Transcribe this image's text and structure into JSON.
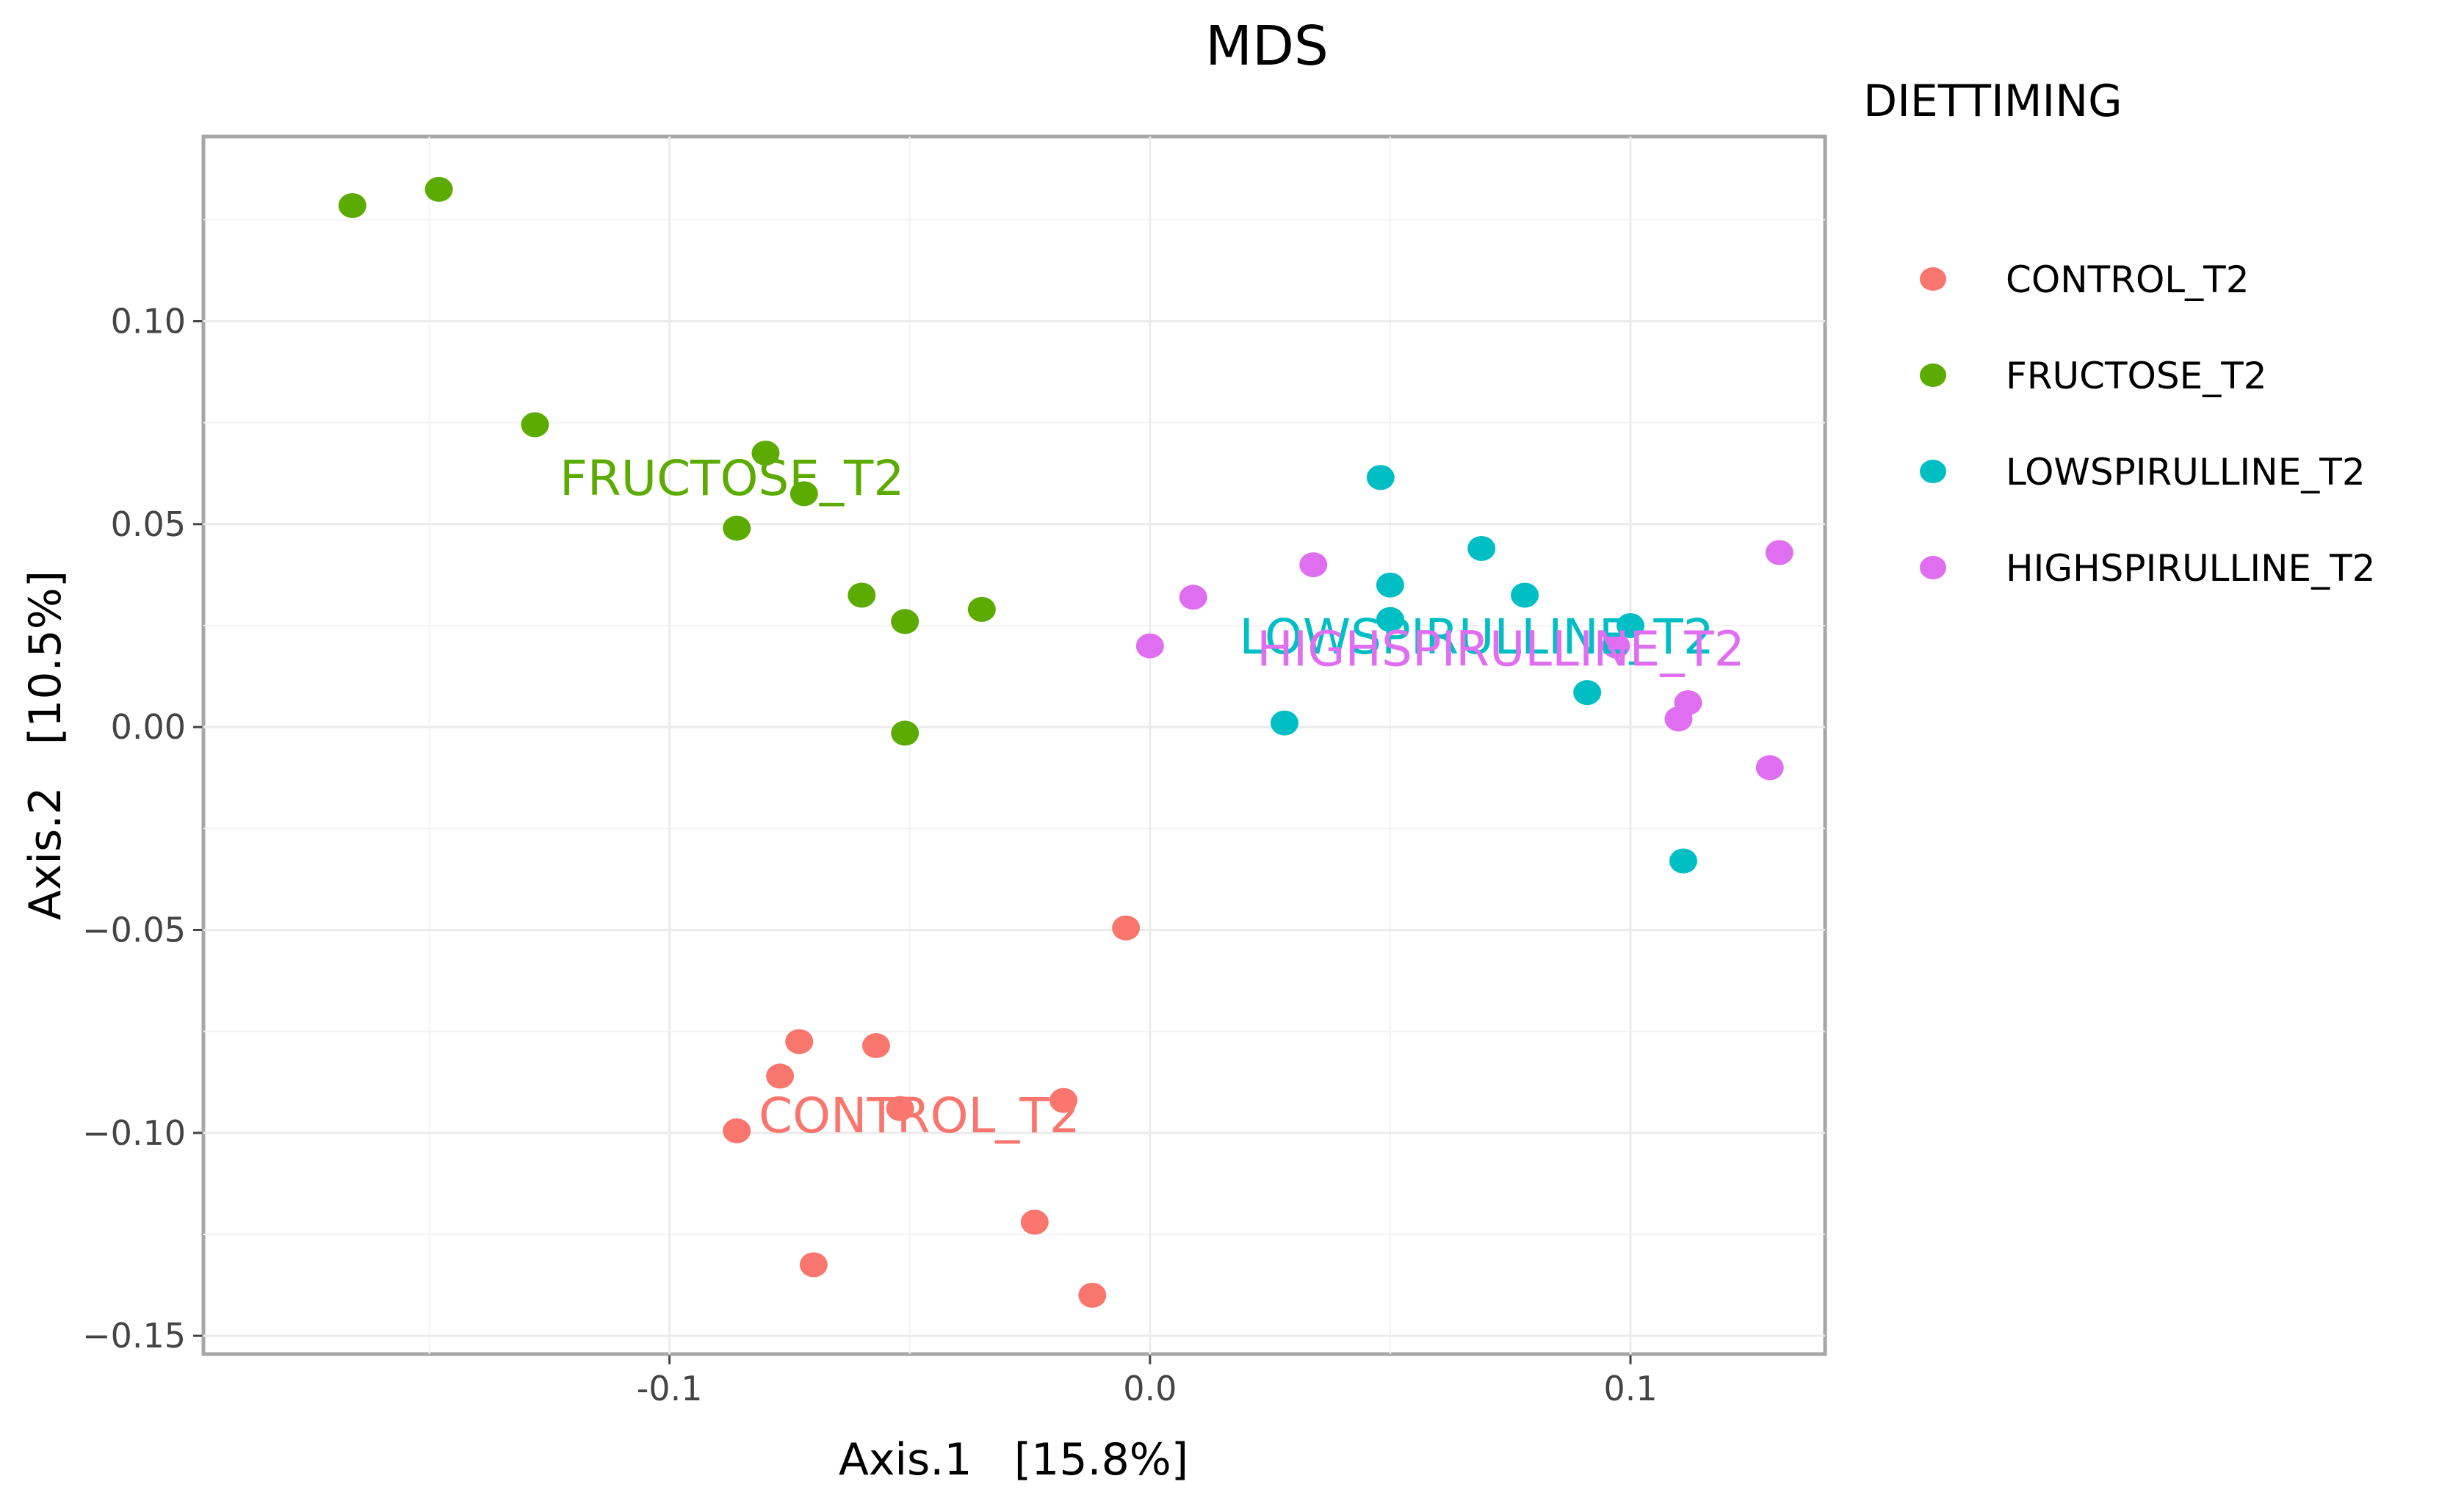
{
  "chart_data": {
    "type": "scatter",
    "title": "MDS",
    "xlabel": "Axis.1   [15.8%]",
    "ylabel": "Axis.2   [10.5%]",
    "xlim": [
      -0.197,
      0.1405
    ],
    "ylim": [
      -0.1545,
      0.1455
    ],
    "x_ticks": [
      {
        "value": -0.1,
        "label": "-0.1"
      },
      {
        "value": 0.0,
        "label": "0.0"
      },
      {
        "value": 0.1,
        "label": "0.1"
      }
    ],
    "y_ticks": [
      {
        "value": 0.1,
        "label": "0.10"
      },
      {
        "value": 0.05,
        "label": "0.05"
      },
      {
        "value": 0.0,
        "label": "0.00"
      },
      {
        "value": -0.05,
        "label": "−0.05"
      },
      {
        "value": -0.1,
        "label": "−0.10"
      },
      {
        "value": -0.15,
        "label": "−0.15"
      }
    ],
    "grid": true,
    "legend": {
      "title": "DIETTIMING",
      "position": "right"
    },
    "series": [
      {
        "name": "CONTROL_T2",
        "color": "#F8766D",
        "label": {
          "text": "CONTROL_T2",
          "x": -0.048,
          "y": -0.0955
        },
        "points": [
          {
            "x": -0.005,
            "y": -0.0495
          },
          {
            "x": -0.073,
            "y": -0.0775
          },
          {
            "x": -0.057,
            "y": -0.0785
          },
          {
            "x": -0.077,
            "y": -0.086
          },
          {
            "x": -0.018,
            "y": -0.092
          },
          {
            "x": -0.052,
            "y": -0.094
          },
          {
            "x": -0.086,
            "y": -0.0995
          },
          {
            "x": -0.024,
            "y": -0.122
          },
          {
            "x": -0.07,
            "y": -0.1325
          },
          {
            "x": -0.012,
            "y": -0.14
          }
        ]
      },
      {
        "name": "FRUCTOSE_T2",
        "color": "#5BAB00",
        "label": {
          "text": "FRUCTOSE_T2",
          "x": -0.087,
          "y": 0.0615
        },
        "points": [
          {
            "x": -0.166,
            "y": 0.1285
          },
          {
            "x": -0.148,
            "y": 0.1325
          },
          {
            "x": -0.128,
            "y": 0.0745
          },
          {
            "x": -0.08,
            "y": 0.0675
          },
          {
            "x": -0.072,
            "y": 0.0575
          },
          {
            "x": -0.086,
            "y": 0.049
          },
          {
            "x": -0.06,
            "y": 0.0325
          },
          {
            "x": -0.051,
            "y": 0.026
          },
          {
            "x": -0.035,
            "y": 0.029
          },
          {
            "x": -0.051,
            "y": -0.0015
          }
        ]
      },
      {
        "name": "LOWSPIRULLINE_T2",
        "color": "#00BFC4",
        "label": {
          "text": "LOWSPIRULLINE_T2",
          "x": 0.068,
          "y": 0.0225
        },
        "points": [
          {
            "x": 0.048,
            "y": 0.0615
          },
          {
            "x": 0.069,
            "y": 0.044
          },
          {
            "x": 0.05,
            "y": 0.035
          },
          {
            "x": 0.078,
            "y": 0.0325
          },
          {
            "x": 0.05,
            "y": 0.0265
          },
          {
            "x": 0.1,
            "y": 0.025
          },
          {
            "x": 0.091,
            "y": 0.0085
          },
          {
            "x": 0.028,
            "y": 0.001
          },
          {
            "x": 0.111,
            "y": -0.033
          }
        ]
      },
      {
        "name": "HIGHSPIRULLINE_T2",
        "color": "#E06EF0",
        "label": {
          "text": "HIGHSPIRULLINE_T2",
          "x": 0.073,
          "y": 0.0195
        },
        "points": [
          {
            "x": 0.034,
            "y": 0.04
          },
          {
            "x": 0.131,
            "y": 0.043
          },
          {
            "x": 0.009,
            "y": 0.032
          },
          {
            "x": 0.0,
            "y": 0.02
          },
          {
            "x": 0.097,
            "y": 0.02
          },
          {
            "x": 0.112,
            "y": 0.006
          },
          {
            "x": 0.11,
            "y": 0.002
          },
          {
            "x": 0.129,
            "y": -0.01
          }
        ]
      }
    ]
  }
}
